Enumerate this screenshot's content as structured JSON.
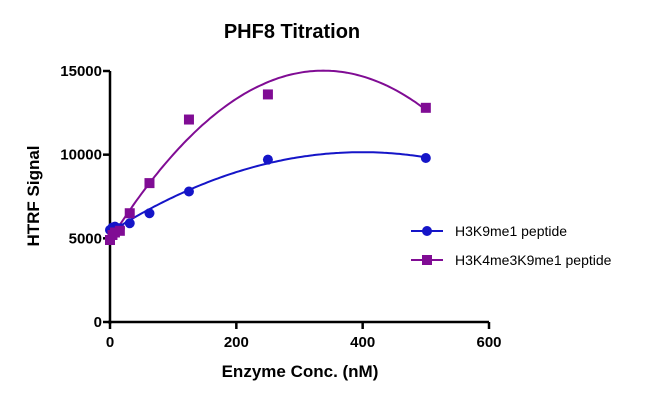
{
  "chart_data": {
    "type": "scatter",
    "title": "PHF8 Titration",
    "xlabel": "Enzyme Conc. (nM)",
    "ylabel": "HTRF Signal",
    "xlim": [
      0,
      600
    ],
    "ylim": [
      0,
      15000
    ],
    "xticks": [
      "0",
      "200",
      "400",
      "600"
    ],
    "yticks": [
      "0",
      "5000",
      "10000",
      "15000"
    ],
    "grid": false,
    "legend_position": "right",
    "series": [
      {
        "name": "H3K9me1 peptide",
        "color": "#1515c8",
        "marker": "circle",
        "x": [
          0,
          3.9,
          7.8,
          15.6,
          31.25,
          62.5,
          125,
          250,
          500
        ],
        "y": [
          5500,
          5650,
          5700,
          5600,
          5900,
          6500,
          7800,
          9700,
          9800
        ],
        "fit_curve": true
      },
      {
        "name": "H3K4me3K9me1 peptide",
        "color": "#800c94",
        "marker": "square",
        "x": [
          0,
          3.9,
          7.8,
          15.6,
          31.25,
          62.5,
          125,
          250,
          500
        ],
        "y": [
          4900,
          5200,
          5350,
          5450,
          6500,
          8300,
          12100,
          13600,
          12800
        ],
        "fit_curve": true
      }
    ]
  }
}
